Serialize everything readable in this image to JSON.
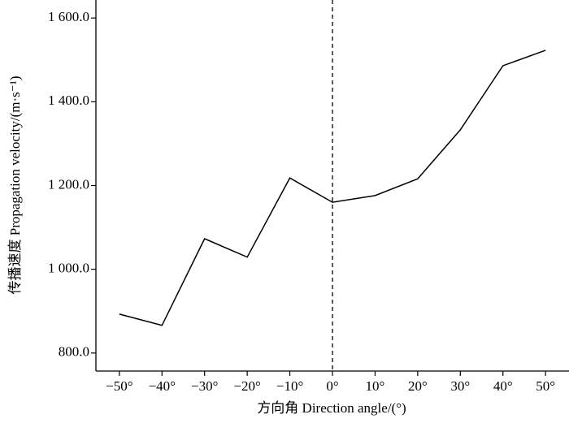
{
  "chart_data": {
    "type": "line",
    "x_label": "方向角 Direction angle/(°)",
    "y_label": "传播速度 Propagation velocity/(m·s⁻¹)",
    "x": [
      -50,
      -40,
      -30,
      -20,
      -10,
      0,
      10,
      20,
      30,
      40,
      50
    ],
    "series": [
      {
        "color": "#000000",
        "values": [
          893,
          866,
          1073,
          1029,
          1218,
          1160,
          1176,
          1216,
          1333,
          1486,
          1523
        ]
      }
    ],
    "xlim": [
      -55.5,
      55.5
    ],
    "ylim": [
      757,
      1643
    ],
    "xticks": [
      {
        "value": -50,
        "label": "−50°"
      },
      {
        "value": -40,
        "label": "−40°"
      },
      {
        "value": -30,
        "label": "−30°"
      },
      {
        "value": -20,
        "label": "−20°"
      },
      {
        "value": -10,
        "label": "−10°"
      },
      {
        "value": 0,
        "label": "0°"
      },
      {
        "value": 10,
        "label": "10°"
      },
      {
        "value": 20,
        "label": "20°"
      },
      {
        "value": 30,
        "label": "30°"
      },
      {
        "value": 40,
        "label": "40°"
      },
      {
        "value": 50,
        "label": "50°"
      }
    ],
    "yticks": [
      {
        "value": 800,
        "label": "800.0"
      },
      {
        "value": 1000,
        "label": "1 000.0"
      },
      {
        "value": 1200,
        "label": "1 200.0"
      },
      {
        "value": 1400,
        "label": "1 400.0"
      },
      {
        "value": 1600,
        "label": "1 600.0"
      }
    ],
    "vline": 0
  }
}
